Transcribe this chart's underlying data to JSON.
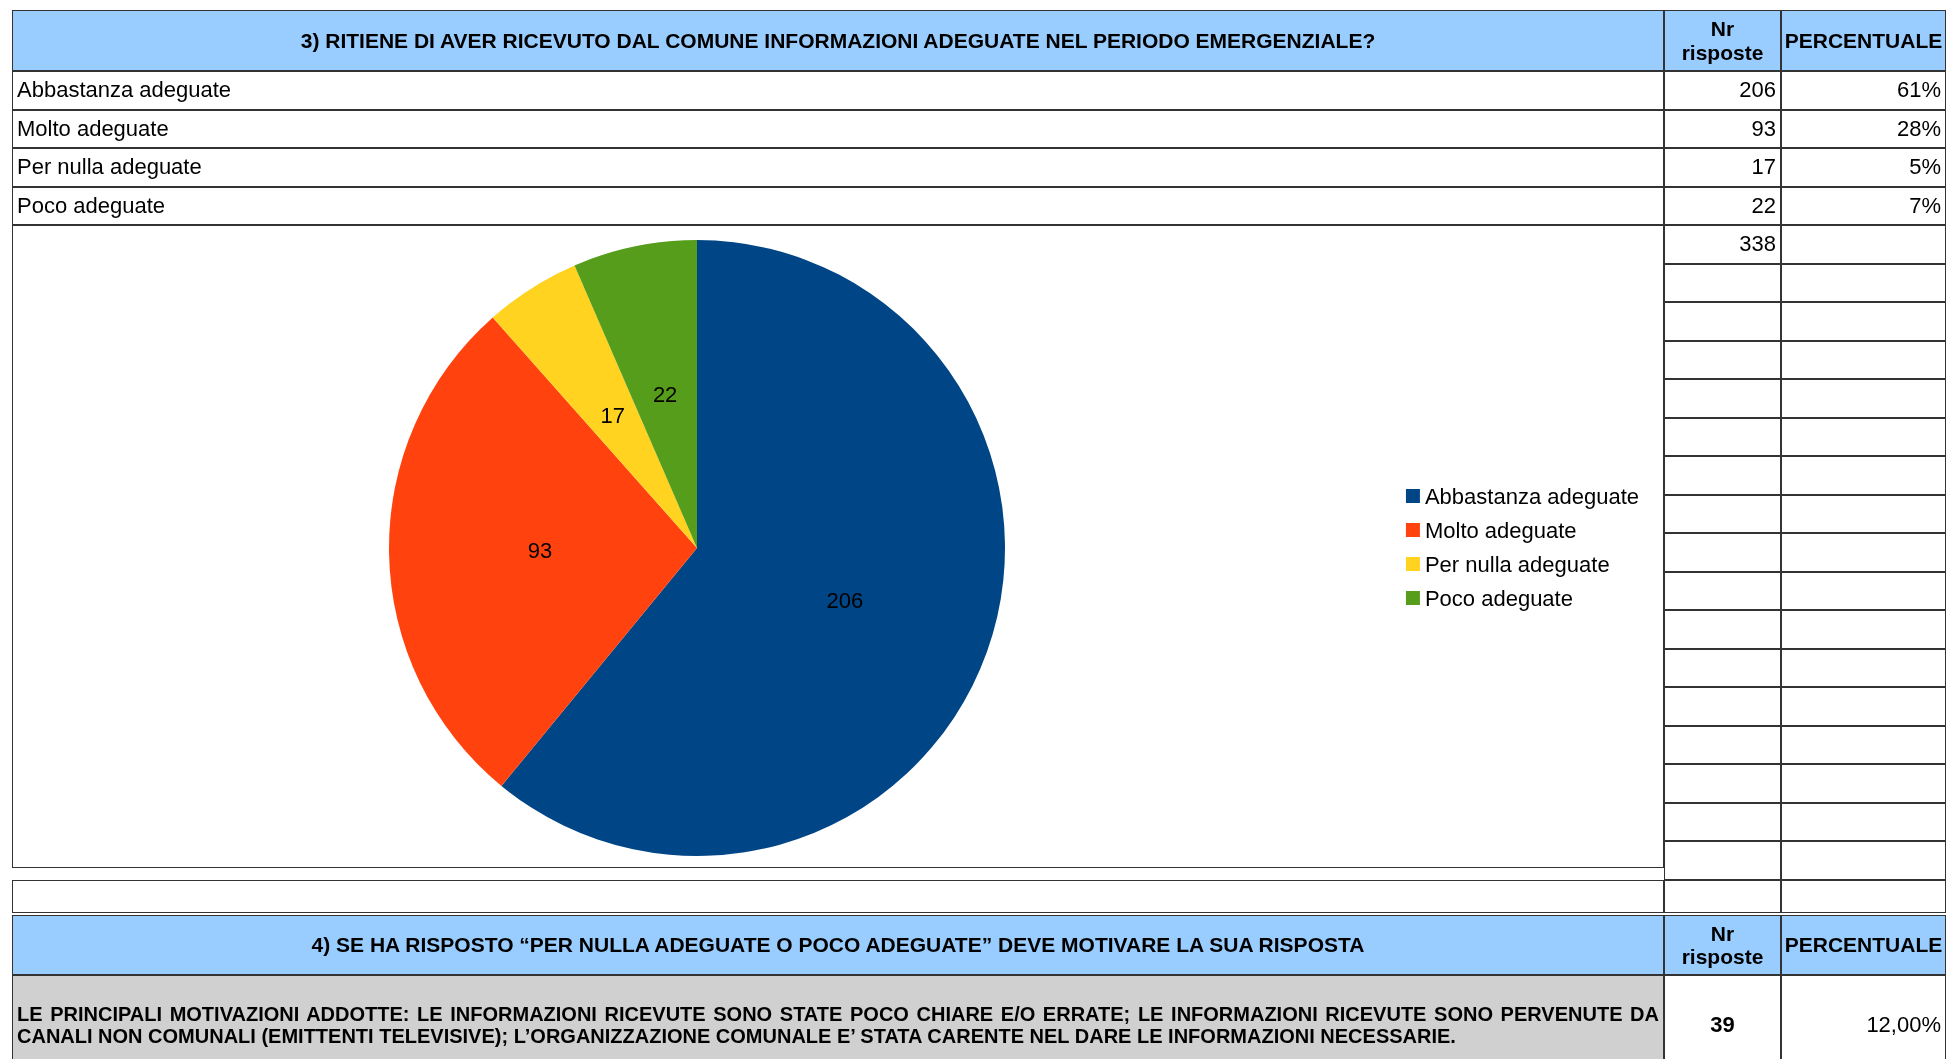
{
  "chart_data": {
    "type": "pie",
    "title": "3) RITIENE DI AVER RICEVUTO DAL COMUNE INFORMAZIONI ADEGUATE NEL PERIODO EMERGENZIALE?",
    "categories": [
      "Abbastanza adeguate",
      "Molto adeguate",
      "Per nulla adeguate",
      "Poco adeguate"
    ],
    "values": [
      206,
      93,
      17,
      22
    ],
    "colors": [
      "#004586",
      "#ff420e",
      "#ffd320",
      "#579d1c"
    ],
    "data_labels": true,
    "legend": "right",
    "annotations": [
      "Nr risposte",
      "PERCENTUALE",
      "206",
      "93",
      "17",
      "22",
      "61%",
      "28%",
      "5%",
      "7%",
      "338",
      "4) SE HA RISPOSTO  “PER NULLA ADEGUATE O POCO ADEGUATE” DEVE MOTIVARE LA SUA RISPOSTA",
      "Nr risposte",
      "PERCENTUALE",
      "LE PRINCIPALI MOTIVAZIONI ADDOTTE: LE INFORMAZIONI RICEVUTE SONO STATE POCO CHIARE E/O ERRATE; LE INFORMAZIONI RICEVUTE SONO PERVENUTE DA CANALI NON COMUNALI (EMITTENTI TELEVISIVE); L’ORGANIZZAZIONE COMUNALE E’ STATA CARENTE NEL DARE LE INFORMAZIONI NECESSARIE.",
      "39",
      "12,00%"
    ]
  }
}
